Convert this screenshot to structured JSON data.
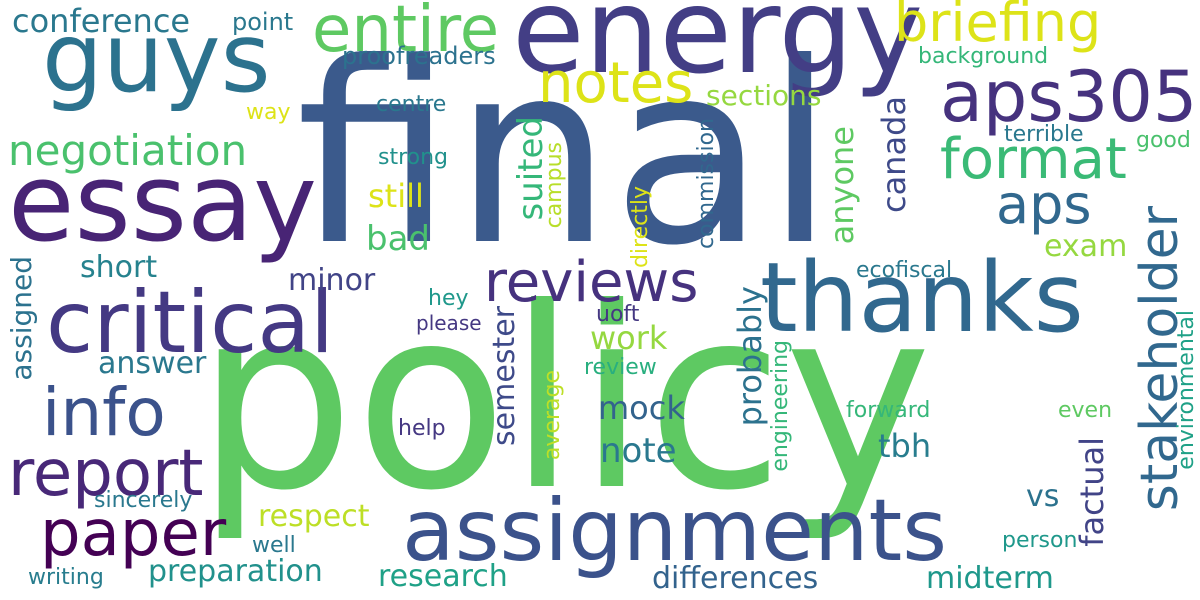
{
  "colors": {
    "background": "#ffffff",
    "palette": [
      "#440154",
      "#46327e",
      "#365c8d",
      "#277f8e",
      "#1fa187",
      "#4ac16d",
      "#a0da39",
      "#e5e419"
    ]
  },
  "words": [
    {
      "key": "final",
      "text": "final",
      "color": "#3b5a8c"
    },
    {
      "key": "policy",
      "text": "policy",
      "color": "#5ec962"
    },
    {
      "key": "energy",
      "text": "energy",
      "color": "#433e85"
    },
    {
      "key": "essay",
      "text": "essay",
      "color": "#482475"
    },
    {
      "key": "guys",
      "text": "guys",
      "color": "#2c728e"
    },
    {
      "key": "thanks",
      "text": "thanks",
      "color": "#31688e"
    },
    {
      "key": "critical",
      "text": "critical",
      "color": "#443983"
    },
    {
      "key": "assignments",
      "text": "assignments",
      "color": "#3b528b"
    },
    {
      "key": "aps305",
      "text": "aps305",
      "color": "#46327e"
    },
    {
      "key": "entire",
      "text": "entire",
      "color": "#5ec962"
    },
    {
      "key": "briefing",
      "text": "briefing",
      "color": "#dde318"
    },
    {
      "key": "notes",
      "text": "notes",
      "color": "#dde318"
    },
    {
      "key": "reviews",
      "text": "reviews",
      "color": "#46327e"
    },
    {
      "key": "format",
      "text": "format",
      "color": "#3aba76"
    },
    {
      "key": "aps",
      "text": "aps",
      "color": "#31688e"
    },
    {
      "key": "info",
      "text": "info",
      "color": "#3b528b"
    },
    {
      "key": "report",
      "text": "report",
      "color": "#482878"
    },
    {
      "key": "paper",
      "text": "paper",
      "color": "#440154"
    },
    {
      "key": "negotiation",
      "text": "negotiation",
      "color": "#4ac16d"
    },
    {
      "key": "stakeholder",
      "text": "stakeholder",
      "color": "#31688e"
    },
    {
      "key": "conference",
      "text": "conference",
      "color": "#2a788e"
    },
    {
      "key": "sections",
      "text": "sections",
      "color": "#95d840"
    },
    {
      "key": "proofreaders",
      "text": "proofreaders",
      "color": "#2c728e"
    },
    {
      "key": "background",
      "text": "background",
      "color": "#35b779"
    },
    {
      "key": "point",
      "text": "point",
      "color": "#2a788e"
    },
    {
      "key": "centre",
      "text": "centre",
      "color": "#2a788e"
    },
    {
      "key": "strong",
      "text": "strong",
      "color": "#21918c"
    },
    {
      "key": "still",
      "text": "still",
      "color": "#dde318"
    },
    {
      "key": "bad",
      "text": "bad",
      "color": "#4ac16d"
    },
    {
      "key": "short",
      "text": "short",
      "color": "#26828e"
    },
    {
      "key": "minor",
      "text": "minor",
      "color": "#414487"
    },
    {
      "key": "answer",
      "text": "answer",
      "color": "#2a788e"
    },
    {
      "key": "work",
      "text": "work",
      "color": "#95d840"
    },
    {
      "key": "mock",
      "text": "mock",
      "color": "#33638d"
    },
    {
      "key": "note",
      "text": "note",
      "color": "#2a788e"
    },
    {
      "key": "tbh",
      "text": "tbh",
      "color": "#287d8e"
    },
    {
      "key": "exam",
      "text": "exam",
      "color": "#95d840"
    },
    {
      "key": "respect",
      "text": "respect",
      "color": "#bddf26"
    },
    {
      "key": "preparation",
      "text": "preparation",
      "color": "#21918c"
    },
    {
      "key": "research",
      "text": "research",
      "color": "#1fa187"
    },
    {
      "key": "differences",
      "text": "differences",
      "color": "#33638d"
    },
    {
      "key": "midterm",
      "text": "midterm",
      "color": "#1f988b"
    },
    {
      "key": "vs",
      "text": "vs",
      "color": "#2c728e"
    },
    {
      "key": "terrible",
      "text": "terrible",
      "color": "#2a788e"
    },
    {
      "key": "good",
      "text": "good",
      "color": "#4ac16d"
    },
    {
      "key": "ecofiscal",
      "text": "ecofiscal",
      "color": "#2a788e"
    },
    {
      "key": "hey",
      "text": "hey",
      "color": "#1f988b"
    },
    {
      "key": "please",
      "text": "please",
      "color": "#453882"
    },
    {
      "key": "uoft",
      "text": "uoft",
      "color": "#453882"
    },
    {
      "key": "review",
      "text": "review",
      "color": "#29af7f"
    },
    {
      "key": "help",
      "text": "help",
      "color": "#453882"
    },
    {
      "key": "forward",
      "text": "forward",
      "color": "#35b779"
    },
    {
      "key": "even",
      "text": "even",
      "color": "#5ec962"
    },
    {
      "key": "sincerely",
      "text": "sincerely",
      "color": "#2a788e"
    },
    {
      "key": "well",
      "text": "well",
      "color": "#2a788e"
    },
    {
      "key": "writing",
      "text": "writing",
      "color": "#287d8e"
    },
    {
      "key": "person",
      "text": "person",
      "color": "#1f988b"
    },
    {
      "key": "way",
      "text": "way",
      "color": "#dde318"
    },
    {
      "key": "assigned",
      "text": "assigned",
      "color": "#2c728e"
    },
    {
      "key": "suited",
      "text": "suited",
      "color": "#35b779"
    },
    {
      "key": "campus",
      "text": "campus",
      "color": "#b8de29"
    },
    {
      "key": "canada",
      "text": "canada",
      "color": "#3e4a89"
    },
    {
      "key": "anyone",
      "text": "anyone",
      "color": "#5ec962"
    },
    {
      "key": "commission",
      "text": "commission",
      "color": "#31688e"
    },
    {
      "key": "directly",
      "text": "directly",
      "color": "#dde318"
    },
    {
      "key": "probably",
      "text": "probably",
      "color": "#2c728e"
    },
    {
      "key": "semester",
      "text": "semester",
      "color": "#3e4a89"
    },
    {
      "key": "average",
      "text": "average",
      "color": "#bddf26"
    },
    {
      "key": "engineering",
      "text": "engineering",
      "color": "#35b779"
    },
    {
      "key": "factual",
      "text": "factual",
      "color": "#414487"
    },
    {
      "key": "environmental",
      "text": "environmental",
      "color": "#1fa187"
    }
  ]
}
